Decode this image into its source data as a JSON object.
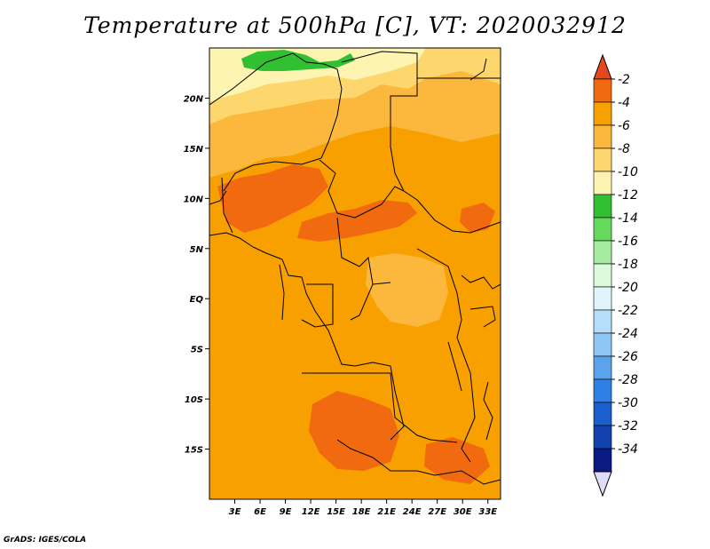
{
  "title": "Temperature at 500hPa [C], VT: 2020032912",
  "credit": "GrADS: IGES/COLA",
  "map": {
    "lon_range": [
      0,
      34.5
    ],
    "lat_range": [
      -20,
      25
    ],
    "lat_ticks": [
      {
        "value": 20,
        "label": "20N"
      },
      {
        "value": 15,
        "label": "15N"
      },
      {
        "value": 10,
        "label": "10N"
      },
      {
        "value": 5,
        "label": "5N"
      },
      {
        "value": 0,
        "label": "EQ"
      },
      {
        "value": -5,
        "label": "5S"
      },
      {
        "value": -10,
        "label": "10S"
      },
      {
        "value": -15,
        "label": "15S"
      }
    ],
    "lon_ticks": [
      {
        "value": 3,
        "label": "3E"
      },
      {
        "value": 6,
        "label": "6E"
      },
      {
        "value": 9,
        "label": "9E"
      },
      {
        "value": 12,
        "label": "12E"
      },
      {
        "value": 15,
        "label": "15E"
      },
      {
        "value": 18,
        "label": "18E"
      },
      {
        "value": 21,
        "label": "21E"
      },
      {
        "value": 24,
        "label": "24E"
      },
      {
        "value": 27,
        "label": "27E"
      },
      {
        "value": 30,
        "label": "30E"
      },
      {
        "value": 33,
        "label": "33E"
      }
    ]
  },
  "colorbar": {
    "labels": [
      "-2",
      "-4",
      "-6",
      "-8",
      "-10",
      "-12",
      "-14",
      "-16",
      "-18",
      "-20",
      "-22",
      "-24",
      "-26",
      "-28",
      "-30",
      "-32",
      "-34"
    ],
    "colors": [
      "#e8461b",
      "#f26a0f",
      "#f7a000",
      "#fbb83c",
      "#fdd66e",
      "#fef4b2",
      "#31c032",
      "#64d95c",
      "#a5eca1",
      "#dbfadb",
      "#e1f4fc",
      "#b4def9",
      "#8dc7f5",
      "#5ba3ef",
      "#2f80e6",
      "#1b5fcf",
      "#1241b1",
      "#0a1a85",
      "#e0dcf8"
    ]
  },
  "regions": {
    "base": "#f7a000",
    "belt_dark": "#f26a0f",
    "north_light": "#fbb83c",
    "north_pale": "#fdd66e",
    "north_cream": "#fef4b2",
    "green_patch": "#31c032"
  }
}
